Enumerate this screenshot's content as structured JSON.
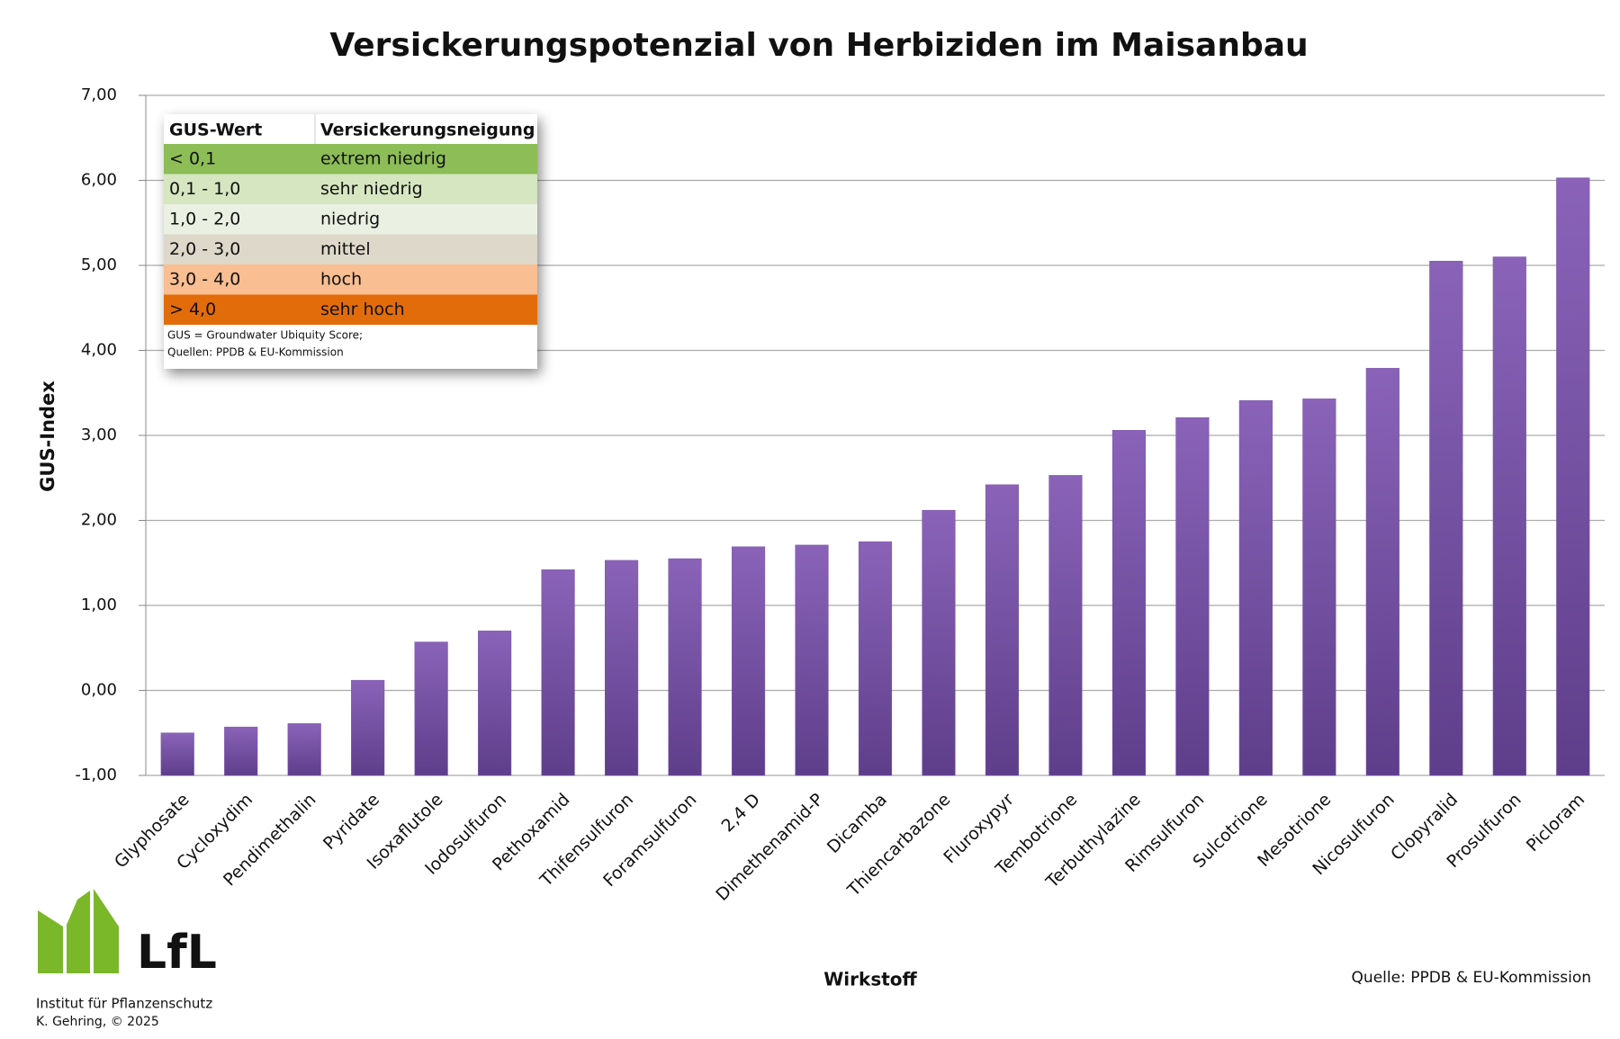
{
  "chart_data": {
    "type": "bar",
    "title": "Versickerungspotenzial von Herbiziden im Maisanbau",
    "x_label": "Wirkstoff",
    "y_label": "GUS-Index",
    "categories": [
      "Glyphosate",
      "Cycloxydim",
      "Pendimethalin",
      "Pyridate",
      "Isoxaflutole",
      "Iodosulfuron",
      "Pethoxamid",
      "Thifensulfuron",
      "Foramsulfuron",
      "2,4 D",
      "Dimethenamid-P",
      "Dicamba",
      "Thiencarbazone",
      "Fluroxypyr",
      "Tembotrione",
      "Terbuthylazine",
      "Rimsulfuron",
      "Sulcotrione",
      "Mesotrione",
      "Nicosulfuron",
      "Clopyralid",
      "Prosulfuron",
      "Picloram"
    ],
    "values": [
      -0.5,
      -0.43,
      -0.39,
      0.12,
      0.57,
      0.7,
      1.42,
      1.53,
      1.55,
      1.69,
      1.71,
      1.75,
      2.12,
      2.42,
      2.53,
      3.06,
      3.21,
      3.41,
      3.43,
      3.79,
      5.05,
      5.1,
      6.03
    ],
    "color": "#7a55a8",
    "ylim": [
      -1,
      7
    ],
    "yticks": [
      {
        "value": -1,
        "label": "-1,00"
      },
      {
        "value": 0,
        "label": "0,00"
      },
      {
        "value": 1,
        "label": "1,00"
      },
      {
        "value": 2,
        "label": "2,00"
      },
      {
        "value": 3,
        "label": "3,00"
      },
      {
        "value": 4,
        "label": "4,00"
      },
      {
        "value": 5,
        "label": "5,00"
      },
      {
        "value": 6,
        "label": "6,00"
      },
      {
        "value": 7,
        "label": "7,00"
      }
    ],
    "grid": true,
    "source": "Quelle: PPDB & EU-Kommission"
  },
  "legend_table": {
    "header": [
      "GUS-Wert",
      "Versickerungsneigung"
    ],
    "rows": [
      [
        "< 0,1",
        "extrem niedrig"
      ],
      [
        "0,1 - 1,0",
        "sehr niedrig"
      ],
      [
        "1,0 - 2,0",
        "niedrig"
      ],
      [
        "2,0 - 3,0",
        "mittel"
      ],
      [
        "3,0 - 4,0",
        "hoch"
      ],
      [
        "> 4,0",
        "sehr hoch"
      ]
    ],
    "note": [
      "GUS = Groundwater Ubiquity Score;",
      "Quellen: PPDB & EU-Kommission"
    ]
  },
  "logo": {
    "name": "LfL",
    "institute": "Institut für Pflanzenschutz",
    "credit": "K. Gehring, © 2025"
  }
}
